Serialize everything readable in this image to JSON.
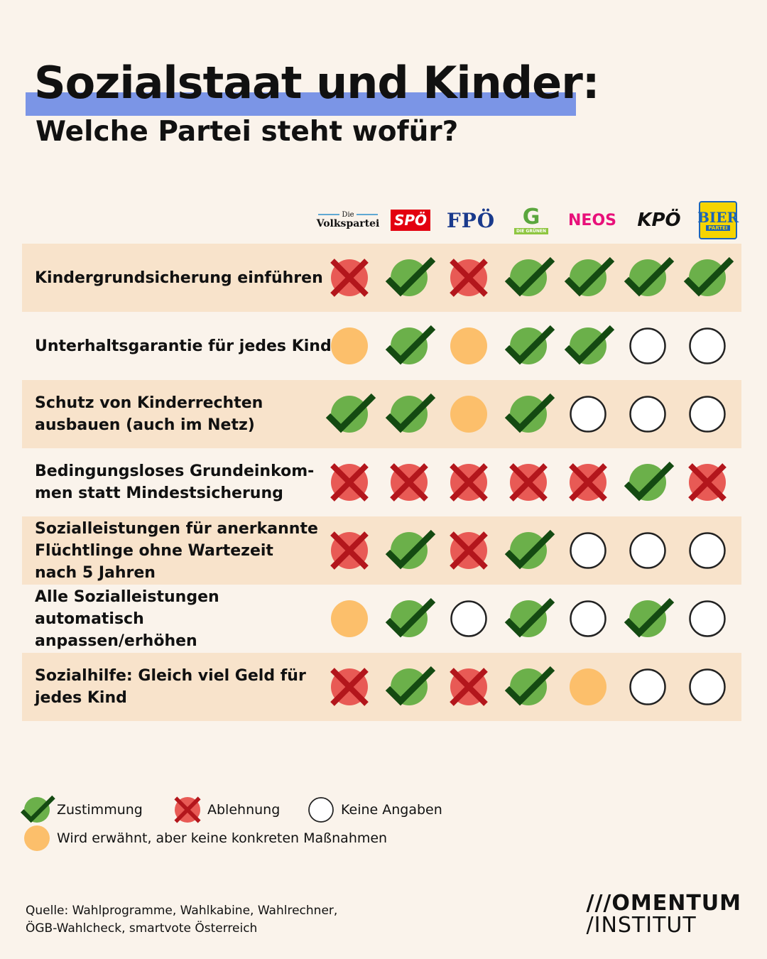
{
  "title": "Sozialstaat und Kinder:",
  "subtitle": "Welche Partei steht wofür?",
  "parties": [
    {
      "id": "ovp",
      "logo_text": "Volkspartei",
      "logo_small": "Die"
    },
    {
      "id": "spo",
      "logo_text": "SPÖ"
    },
    {
      "id": "fpo",
      "logo_text": "FPÖ"
    },
    {
      "id": "gruene",
      "logo_text": "G",
      "logo_small": "DIE GRÜNEN"
    },
    {
      "id": "neos",
      "logo_text": "NEOS"
    },
    {
      "id": "kpo",
      "logo_text": "KPÖ"
    },
    {
      "id": "bier",
      "logo_text": "BIER",
      "logo_small": "PARTEI"
    }
  ],
  "rows": [
    {
      "label": "Kindergrundsicherung einführen",
      "values": [
        "no",
        "yes",
        "no",
        "yes",
        "yes",
        "yes",
        "yes"
      ]
    },
    {
      "label": "Unterhaltsgarantie für jedes Kind",
      "values": [
        "mention",
        "yes",
        "mention",
        "yes",
        "yes",
        "none",
        "none"
      ]
    },
    {
      "label": "Schutz von Kinderrechten\nausbauen (auch im Netz)",
      "values": [
        "yes",
        "yes",
        "mention",
        "yes",
        "none",
        "none",
        "none"
      ]
    },
    {
      "label": "Bedingungsloses Grundeinkom-\nmen statt Mindestsicherung",
      "values": [
        "no",
        "no",
        "no",
        "no",
        "no",
        "yes",
        "no"
      ]
    },
    {
      "label": "Sozialleistungen für anerkannte\nFlüchtlinge ohne Wartezeit\nnach 5 Jahren",
      "values": [
        "no",
        "yes",
        "no",
        "yes",
        "none",
        "none",
        "none"
      ]
    },
    {
      "label": "Alle Sozialleistungen automatisch\nanpassen/erhöhen",
      "values": [
        "mention",
        "yes",
        "none",
        "yes",
        "none",
        "yes",
        "none"
      ]
    },
    {
      "label": "Sozialhilfe: Gleich viel Geld für\njedes Kind",
      "values": [
        "no",
        "yes",
        "no",
        "yes",
        "mention",
        "none",
        "none"
      ]
    }
  ],
  "legend": {
    "yes": "Zustimmung",
    "no": "Ablehnung",
    "none": "Keine Angaben",
    "mention": "Wird erwähnt, aber keine konkreten Maßnahmen"
  },
  "source": "Quelle: Wahlprogramme, Wahlkabine, Wahlrechner,\nÖGB-Wahlcheck, smartvote Österreich",
  "brand": {
    "line1": "///OMENTUM",
    "line2": "/INSTITUT"
  },
  "colors": {
    "background": "#faf3eb",
    "row_shade": "#f8e3cb",
    "highlight": "#7b95e6",
    "green": "#6bb04a",
    "check": "#144a12",
    "red": "#e85a55",
    "cross": "#b3161c",
    "orange": "#fcbf6b"
  }
}
